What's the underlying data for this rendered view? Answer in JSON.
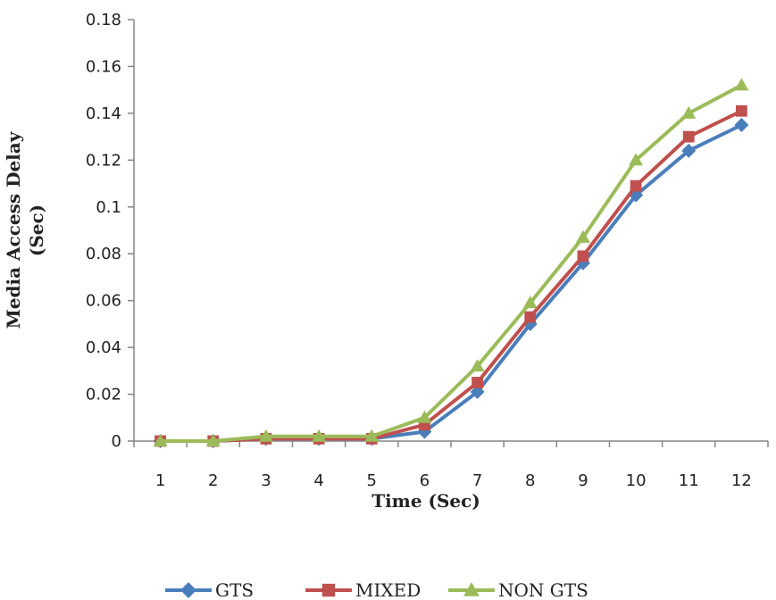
{
  "chart_data": {
    "type": "line",
    "title": "",
    "xlabel": "Time (Sec)",
    "ylabel_lines": [
      "Media Access Delay",
      "(Sec)"
    ],
    "categories": [
      "1",
      "2",
      "3",
      "4",
      "5",
      "6",
      "7",
      "8",
      "9",
      "10",
      "11",
      "12"
    ],
    "yticks": [
      "0",
      "0.02",
      "0.04",
      "0.06",
      "0.08",
      "0.1",
      "0.12",
      "0.14",
      "0.16",
      "0.18"
    ],
    "ylim": [
      0,
      0.18
    ],
    "grid": false,
    "legend_position": "bottom",
    "series": [
      {
        "name": "GTS",
        "color": "#4a7ebb",
        "marker": "diamond",
        "values": [
          0,
          0,
          0.001,
          0.001,
          0.001,
          0.004,
          0.021,
          0.05,
          0.076,
          0.105,
          0.124,
          0.135
        ]
      },
      {
        "name": "MIXED",
        "color": "#c0504d",
        "marker": "square",
        "values": [
          0,
          0,
          0.001,
          0.001,
          0.001,
          0.007,
          0.025,
          0.053,
          0.079,
          0.109,
          0.13,
          0.141
        ]
      },
      {
        "name": "NON GTS",
        "color": "#9bbb59",
        "marker": "triangle",
        "values": [
          0,
          0,
          0.002,
          0.002,
          0.002,
          0.01,
          0.032,
          0.059,
          0.087,
          0.12,
          0.14,
          0.152
        ]
      }
    ]
  }
}
